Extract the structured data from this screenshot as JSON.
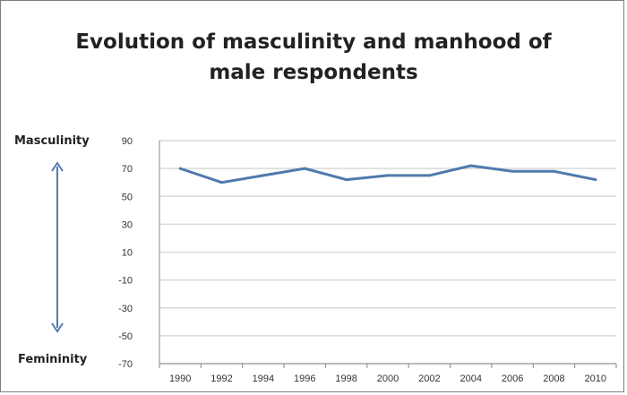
{
  "chart_data": {
    "type": "line",
    "title_lines": [
      "Evolution of masculinity and manhood of",
      "male respondents"
    ],
    "top_label": "Masculinity",
    "bottom_label": "Femininity",
    "x": [
      "1990",
      "1992",
      "1994",
      "1996",
      "1998",
      "2000",
      "2002",
      "2004",
      "2006",
      "2008",
      "2010"
    ],
    "series": [
      {
        "values": [
          70,
          60,
          65,
          70,
          62,
          65,
          65,
          72,
          68,
          68,
          62
        ]
      }
    ],
    "yticks": [
      90,
      70,
      50,
      30,
      10,
      -10,
      -30,
      -50,
      -70
    ],
    "ylim": [
      -70,
      90
    ],
    "grid": true,
    "series_color": "#4f7bab",
    "arrow_color": "#4f7bab",
    "gridline_color": "#d9d9d9"
  }
}
